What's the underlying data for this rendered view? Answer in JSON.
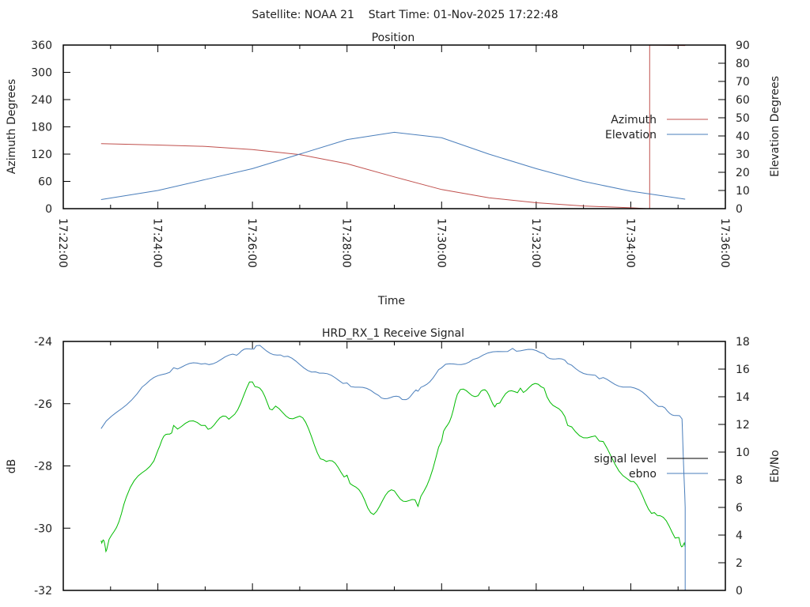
{
  "header": {
    "title": "Satellite: NOAA 21    Start Time: 01-Nov-2025 17:22:48"
  },
  "chart_data": [
    {
      "type": "line",
      "title": "Position",
      "xlabel": "Time",
      "ylabel": "Azimuth Degrees",
      "y2label": "Elevation Degrees",
      "xlim": [
        "17:22:00",
        "17:36:00"
      ],
      "ylim": [
        0,
        360
      ],
      "y2lim": [
        0,
        90
      ],
      "xticks": [
        "17:22:00",
        "17:24:00",
        "17:26:00",
        "17:28:00",
        "17:30:00",
        "17:32:00",
        "17:34:00",
        "17:36:00"
      ],
      "yticks": [
        "0",
        "60",
        "120",
        "180",
        "240",
        "300",
        "360"
      ],
      "y2ticks": [
        "0",
        "10",
        "20",
        "30",
        "40",
        "50",
        "60",
        "70",
        "80",
        "90"
      ],
      "legend_position": "right",
      "series": [
        {
          "name": "Azimuth",
          "axis": "y",
          "color": "#c0504d",
          "points": [
            [
              "17:22:48",
              143
            ],
            [
              "17:24:00",
              140
            ],
            [
              "17:25:00",
              137
            ],
            [
              "17:26:00",
              130
            ],
            [
              "17:27:00",
              119
            ],
            [
              "17:28:00",
              99
            ],
            [
              "17:29:00",
              70
            ],
            [
              "17:30:00",
              42
            ],
            [
              "17:31:00",
              24
            ],
            [
              "17:32:00",
              13
            ],
            [
              "17:33:00",
              6
            ],
            [
              "17:34:00",
              2
            ],
            [
              "17:34:20",
              0
            ],
            [
              "17:34:24",
              0
            ],
            [
              "17:34:24",
              360
            ],
            [
              "17:35:09",
              359
            ]
          ]
        },
        {
          "name": "Elevation",
          "axis": "y2",
          "color": "#4a7ebb",
          "points": [
            [
              "17:22:48",
              5
            ],
            [
              "17:24:00",
              10
            ],
            [
              "17:25:00",
              16
            ],
            [
              "17:26:00",
              22
            ],
            [
              "17:27:00",
              30
            ],
            [
              "17:28:00",
              38
            ],
            [
              "17:29:00",
              42
            ],
            [
              "17:30:00",
              39
            ],
            [
              "17:31:00",
              30
            ],
            [
              "17:32:00",
              22
            ],
            [
              "17:33:00",
              15
            ],
            [
              "17:34:00",
              9.6
            ],
            [
              "17:35:09",
              5.2
            ]
          ]
        }
      ]
    },
    {
      "type": "line",
      "title": "HRD_RX_1 Receive Signal",
      "xlabel": "",
      "ylabel": "dB",
      "y2label": "Eb/No",
      "xlim": [
        "17:22:00",
        "17:36:00"
      ],
      "ylim": [
        -32,
        -24
      ],
      "y2lim": [
        0,
        18
      ],
      "yticks": [
        "-32",
        "-30",
        "-28",
        "-26",
        "-24"
      ],
      "y2ticks": [
        "0",
        "2",
        "4",
        "6",
        "8",
        "10",
        "12",
        "14",
        "16",
        "18"
      ],
      "legend_position": "right",
      "legend": [
        {
          "name": "signal level",
          "color": "#000000"
        },
        {
          "name": "ebno",
          "color": "#4a7ebb"
        }
      ],
      "series": [
        {
          "name": "signal level",
          "axis": "y",
          "color": "#00bb00",
          "points": [
            [
              "17:22:48",
              -30.4
            ],
            [
              "17:22:55",
              -30.7
            ],
            [
              "17:23:20",
              -29.0
            ],
            [
              "17:24:00",
              -27.5
            ],
            [
              "17:24:20",
              -26.7
            ],
            [
              "17:25:00",
              -26.7
            ],
            [
              "17:25:30",
              -26.5
            ],
            [
              "17:26:00",
              -25.3
            ],
            [
              "17:26:25",
              -26.2
            ],
            [
              "17:27:00",
              -26.4
            ],
            [
              "17:27:30",
              -27.8
            ],
            [
              "17:28:00",
              -28.3
            ],
            [
              "17:28:30",
              -29.5
            ],
            [
              "17:29:00",
              -28.8
            ],
            [
              "17:29:30",
              -29.3
            ],
            [
              "17:30:00",
              -27.2
            ],
            [
              "17:30:20",
              -25.7
            ],
            [
              "17:30:50",
              -25.6
            ],
            [
              "17:31:10",
              -26.0
            ],
            [
              "17:31:40",
              -25.5
            ],
            [
              "17:32:10",
              -25.5
            ],
            [
              "17:32:40",
              -26.7
            ],
            [
              "17:33:20",
              -27.2
            ],
            [
              "17:34:00",
              -28.5
            ],
            [
              "17:34:30",
              -29.5
            ],
            [
              "17:35:00",
              -30.3
            ],
            [
              "17:35:09",
              -30.6
            ]
          ]
        },
        {
          "name": "ebno",
          "axis": "y2",
          "color": "#4a7ebb",
          "points": [
            [
              "17:22:48",
              11.7
            ],
            [
              "17:23:40",
              14.7
            ],
            [
              "17:24:20",
              16.1
            ],
            [
              "17:25:00",
              16.4
            ],
            [
              "17:25:40",
              17.0
            ],
            [
              "17:26:05",
              17.7
            ],
            [
              "17:26:40",
              16.9
            ],
            [
              "17:27:20",
              15.8
            ],
            [
              "17:28:00",
              15.0
            ],
            [
              "17:28:40",
              14.1
            ],
            [
              "17:29:10",
              13.8
            ],
            [
              "17:29:30",
              14.4
            ],
            [
              "17:30:00",
              16.1
            ],
            [
              "17:30:40",
              16.7
            ],
            [
              "17:31:30",
              17.5
            ],
            [
              "17:32:10",
              17.1
            ],
            [
              "17:32:40",
              16.4
            ],
            [
              "17:33:20",
              15.3
            ],
            [
              "17:34:00",
              14.7
            ],
            [
              "17:34:40",
              13.3
            ],
            [
              "17:35:05",
              12.4
            ],
            [
              "17:35:09",
              6.0
            ],
            [
              "17:35:09",
              0
            ]
          ]
        }
      ]
    }
  ]
}
